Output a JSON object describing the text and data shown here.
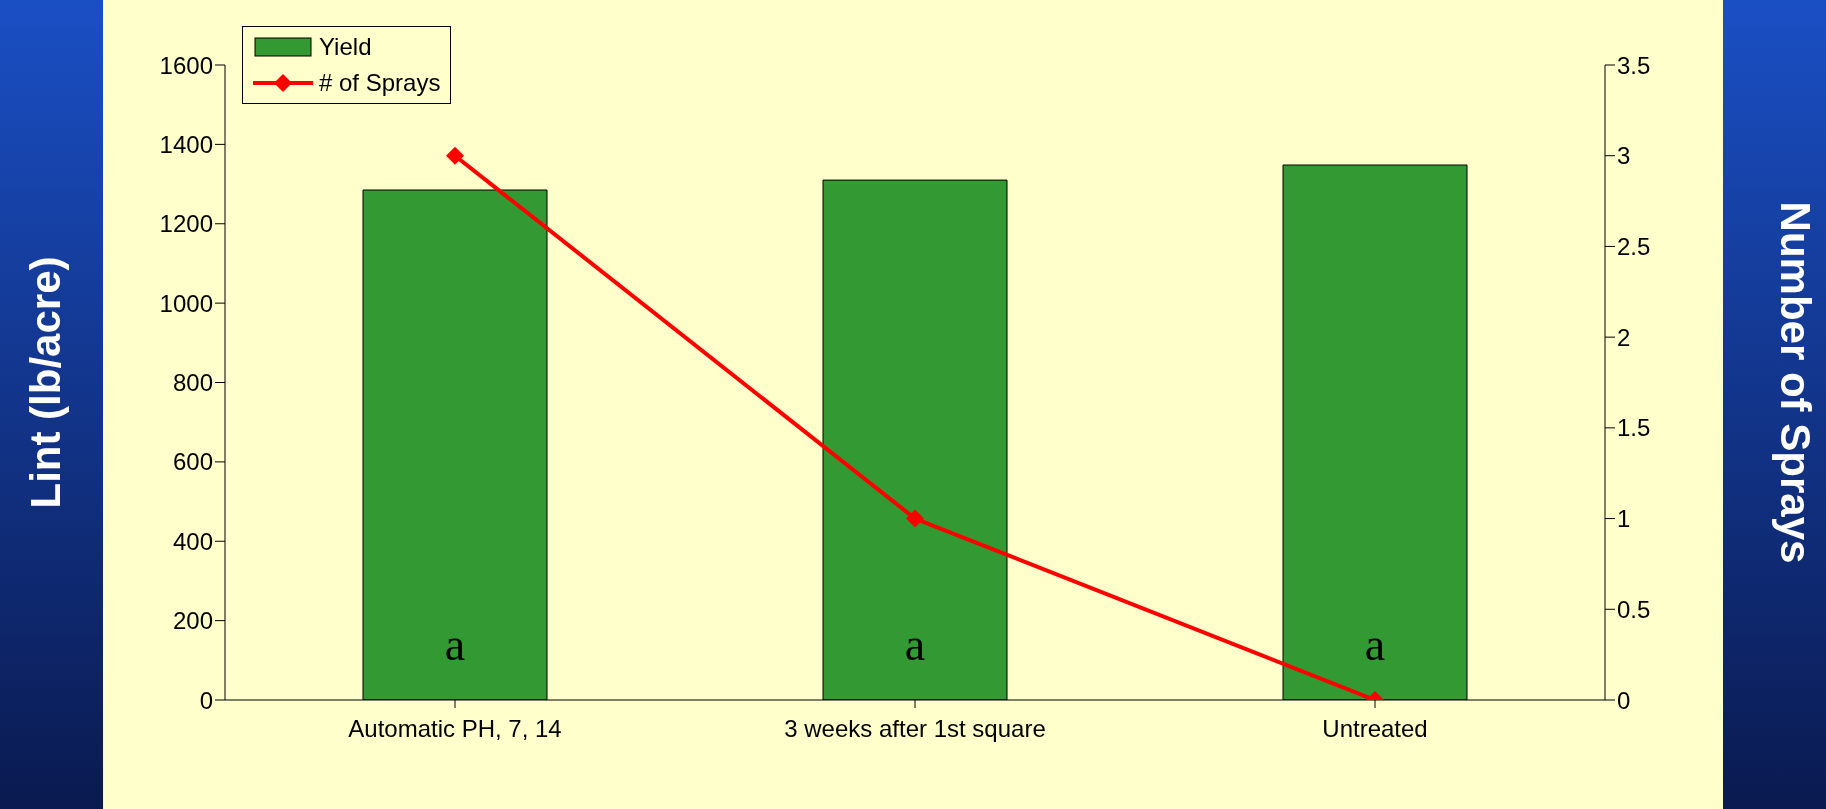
{
  "chart_data": {
    "type": "bar",
    "ylabel": "Lint (lb/acre)",
    "y2label": "Number of Sprays",
    "categories": [
      "Automatic PH, 7, 14",
      "3 weeks after 1st square",
      "Untreated"
    ],
    "series": [
      {
        "name": "Yield",
        "color": "#339933",
        "values": [
          1285,
          1310,
          1348
        ]
      },
      {
        "name": "# of Sprays",
        "type": "line",
        "axis": "y2",
        "color": "#ff0000",
        "values": [
          3,
          1,
          0
        ],
        "marker": "diamond",
        "line_style": "solid"
      }
    ],
    "ylim": [
      0,
      1600
    ],
    "yticks": [
      0,
      200,
      400,
      600,
      800,
      1000,
      1200,
      1400,
      1600
    ],
    "y2lim": [
      0,
      3.5
    ],
    "y2ticks": [
      0,
      0.5,
      1,
      1.5,
      2,
      2.5,
      3,
      3.5
    ],
    "annotations": [
      "a",
      "a",
      "a"
    ],
    "grid": false,
    "legend": "top left"
  }
}
